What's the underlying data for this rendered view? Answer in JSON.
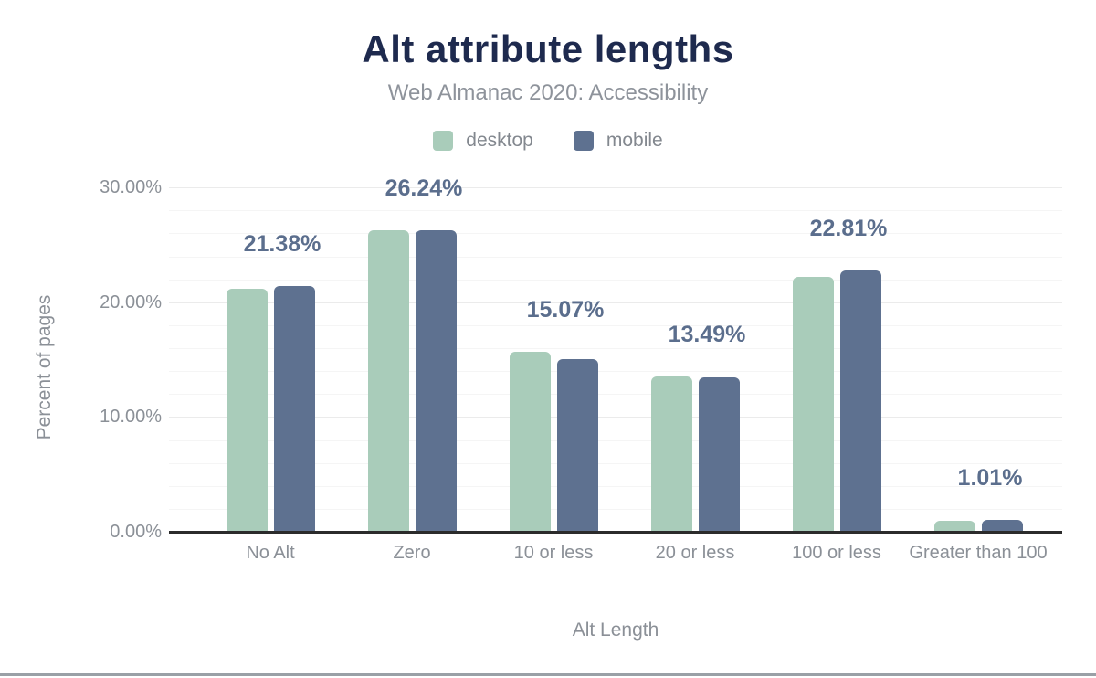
{
  "header": {
    "title": "Alt attribute lengths",
    "subtitle": "Web Almanac 2020: Accessibility"
  },
  "colors": {
    "title_text": "#1e2a4e",
    "subtitle_text": "#8e939b",
    "axis_text": "#8b9097",
    "data_label_text": "#5b6e8d",
    "grid_minor": "#f5f5f5",
    "grid_major": "#ebebeb",
    "baseline": "#2b2b2b",
    "desktop": "#a9ccba",
    "mobile": "#5e7190"
  },
  "legend": {
    "items": [
      {
        "label": "desktop",
        "color_key": "desktop"
      },
      {
        "label": "mobile",
        "color_key": "mobile"
      }
    ]
  },
  "chart_data": {
    "type": "bar",
    "title": "Alt attribute lengths",
    "subtitle": "Web Almanac 2020: Accessibility",
    "xlabel": "Alt Length",
    "ylabel": "Percent of pages",
    "categories": [
      "No Alt",
      "Zero",
      "10 or less",
      "20 or less",
      "100 or less",
      "Greater than 100"
    ],
    "series": [
      {
        "name": "desktop",
        "color_key": "desktop",
        "values": [
          21.2,
          26.3,
          15.7,
          13.5,
          22.2,
          0.98
        ]
      },
      {
        "name": "mobile",
        "color_key": "mobile",
        "values": [
          21.38,
          26.24,
          15.07,
          13.49,
          22.81,
          1.01
        ]
      }
    ],
    "data_labels": [
      "21.38%",
      "26.24%",
      "15.07%",
      "13.49%",
      "22.81%",
      "1.01%"
    ],
    "ylim": [
      0,
      30
    ],
    "yticks": [
      {
        "value": 0,
        "label": "0.00%"
      },
      {
        "value": 10,
        "label": "10.00%"
      },
      {
        "value": 20,
        "label": "20.00%"
      },
      {
        "value": 30,
        "label": "30.00%"
      }
    ],
    "minor_grid_step": 2,
    "grid": true,
    "legend_position": "top"
  }
}
